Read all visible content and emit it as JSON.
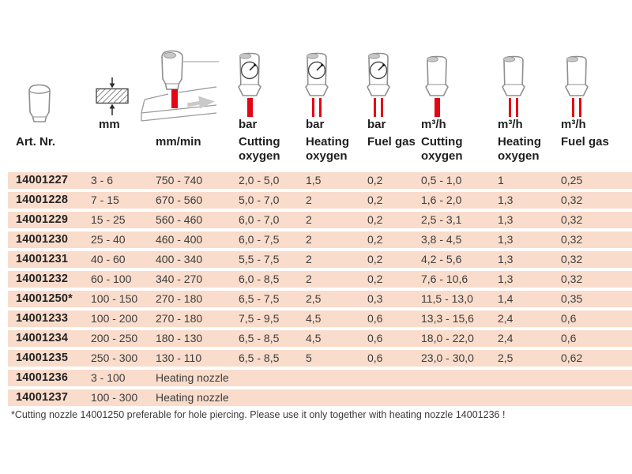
{
  "columns": [
    {
      "key": "art",
      "name": "Art. Nr.",
      "unit": "",
      "icon": "nozzle-icon"
    },
    {
      "key": "mm",
      "name": "",
      "unit": "mm",
      "icon": "plate-thickness-icon"
    },
    {
      "key": "speed",
      "name": "mm/min",
      "unit": "",
      "icon": "cutting-speed-icon"
    },
    {
      "key": "bar_cut",
      "name": "Cutting oxygen",
      "unit": "bar",
      "icon": "pressure-gauge-nozzle-icon"
    },
    {
      "key": "bar_heat",
      "name": "Heating oxygen",
      "unit": "bar",
      "icon": "pressure-gauge-nozzle-icon"
    },
    {
      "key": "bar_fuel",
      "name": "Fuel gas",
      "unit": "bar",
      "icon": "pressure-gauge-nozzle-icon"
    },
    {
      "key": "m3h_cut",
      "name": "Cutting oxygen",
      "unit": "m³/h",
      "icon": "flow-nozzle-icon"
    },
    {
      "key": "m3h_heat",
      "name": "Heating oxygen",
      "unit": "m³/h",
      "icon": "flow-nozzle-icon"
    },
    {
      "key": "m3h_fuel",
      "name": "Fuel gas",
      "unit": "m³/h",
      "icon": "flow-nozzle-icon"
    }
  ],
  "column_keys": [
    "art",
    "mm",
    "speed",
    "bar_cut",
    "bar_heat",
    "bar_fuel",
    "m3h_cut",
    "m3h_heat",
    "m3h_fuel"
  ],
  "rows": [
    {
      "art": "14001227",
      "mm": "3 - 6",
      "speed": "750 - 740",
      "bar_cut": "2,0 - 5,0",
      "bar_heat": "1,5",
      "bar_fuel": "0,2",
      "m3h_cut": "0,5 - 1,0",
      "m3h_heat": "1",
      "m3h_fuel": "0,25"
    },
    {
      "art": "14001228",
      "mm": "7 - 15",
      "speed": "670 - 560",
      "bar_cut": "5,0 - 7,0",
      "bar_heat": "2",
      "bar_fuel": "0,2",
      "m3h_cut": "1,6 - 2,0",
      "m3h_heat": "1,3",
      "m3h_fuel": "0,32"
    },
    {
      "art": "14001229",
      "mm": "15 - 25",
      "speed": "560 - 460",
      "bar_cut": "6,0 - 7,0",
      "bar_heat": "2",
      "bar_fuel": "0,2",
      "m3h_cut": "2,5 - 3,1",
      "m3h_heat": "1,3",
      "m3h_fuel": "0,32"
    },
    {
      "art": "14001230",
      "mm": "25 - 40",
      "speed": "460 - 400",
      "bar_cut": "6,0 - 7,5",
      "bar_heat": "2",
      "bar_fuel": "0,2",
      "m3h_cut": "3,8 - 4,5",
      "m3h_heat": "1,3",
      "m3h_fuel": "0,32"
    },
    {
      "art": "14001231",
      "mm": "40 - 60",
      "speed": "400 - 340",
      "bar_cut": "5,5 - 7,5",
      "bar_heat": "2",
      "bar_fuel": "0,2",
      "m3h_cut": "4,2 - 5,6",
      "m3h_heat": "1,3",
      "m3h_fuel": "0,32"
    },
    {
      "art": "14001232",
      "mm": "60 - 100",
      "speed": "340 - 270",
      "bar_cut": "6,0 - 8,5",
      "bar_heat": "2",
      "bar_fuel": "0,2",
      "m3h_cut": "7,6 - 10,6",
      "m3h_heat": "1,3",
      "m3h_fuel": "0,32"
    },
    {
      "art": "14001250*",
      "mm": "100 - 150",
      "speed": "270 - 180",
      "bar_cut": "6,5 - 7,5",
      "bar_heat": "2,5",
      "bar_fuel": "0,3",
      "m3h_cut": "11,5 - 13,0",
      "m3h_heat": "1,4",
      "m3h_fuel": "0,35"
    },
    {
      "art": "14001233",
      "mm": "100 - 200",
      "speed": "270 - 180",
      "bar_cut": "7,5 - 9,5",
      "bar_heat": "4,5",
      "bar_fuel": "0,6",
      "m3h_cut": "13,3 - 15,6",
      "m3h_heat": "2,4",
      "m3h_fuel": "0,6"
    },
    {
      "art": "14001234",
      "mm": "200 - 250",
      "speed": "180 - 130",
      "bar_cut": "6,5 - 8,5",
      "bar_heat": "4,5",
      "bar_fuel": "0,6",
      "m3h_cut": "18,0 - 22,0",
      "m3h_heat": "2,4",
      "m3h_fuel": "0,6"
    },
    {
      "art": "14001235",
      "mm": "250 - 300",
      "speed": "130 - 110",
      "bar_cut": "6,5 - 8,5",
      "bar_heat": "5",
      "bar_fuel": "0,6",
      "m3h_cut": "23,0 - 30,0",
      "m3h_heat": "2,5",
      "m3h_fuel": "0,62"
    },
    {
      "art": "14001236",
      "mm": "3 - 100",
      "speed": "Heating nozzle",
      "bar_cut": "",
      "bar_heat": "",
      "bar_fuel": "",
      "m3h_cut": "",
      "m3h_heat": "",
      "m3h_fuel": ""
    },
    {
      "art": "14001237",
      "mm": "100 - 300",
      "speed": "Heating nozzle",
      "bar_cut": "",
      "bar_heat": "",
      "bar_fuel": "",
      "m3h_cut": "",
      "m3h_heat": "",
      "m3h_fuel": ""
    }
  ],
  "footnote": "*Cutting nozzle 14001250 preferable for hole piercing. Please use it only together with heating nozzle 14001236 !",
  "colors": {
    "row_bg": "#f9dccb",
    "accent_red": "#e30613",
    "text": "#3d3d3d",
    "icon_outline": "#8f8f8f"
  }
}
